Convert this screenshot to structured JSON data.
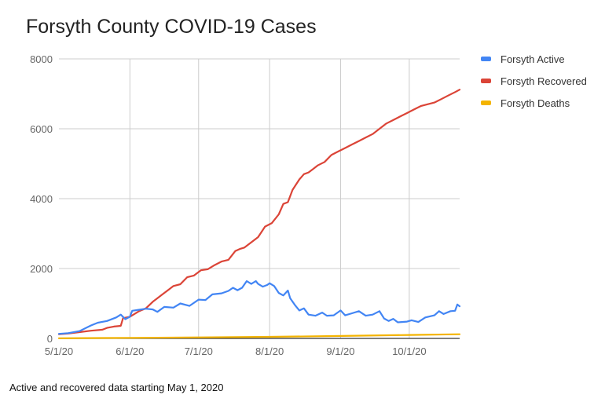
{
  "chart_data": {
    "type": "line",
    "title": "Forsyth County COVID-19 Cases",
    "xlabel": "",
    "ylabel": "",
    "x_ticks": [
      "5/1/20",
      "6/1/20",
      "7/1/20",
      "8/1/20",
      "9/1/20",
      "10/1/20"
    ],
    "x_range": [
      "5/1/20",
      "10/23/20"
    ],
    "y_ticks": [
      "0",
      "2000",
      "4000",
      "6000",
      "8000"
    ],
    "ylim": [
      0,
      8000
    ],
    "grid": true,
    "legend_position": "right",
    "annotation": "Active and recovered data starting May 1, 2020",
    "series": [
      {
        "name": "Forsyth Active",
        "color": "#4285f4",
        "points": [
          [
            "5/1/20",
            130
          ],
          [
            "5/5/20",
            150
          ],
          [
            "5/10/20",
            210
          ],
          [
            "5/15/20",
            370
          ],
          [
            "5/18/20",
            450
          ],
          [
            "5/22/20",
            500
          ],
          [
            "5/26/20",
            600
          ],
          [
            "5/28/20",
            680
          ],
          [
            "5/30/20",
            550
          ],
          [
            "6/1/20",
            620
          ],
          [
            "6/2/20",
            790
          ],
          [
            "6/5/20",
            820
          ],
          [
            "6/8/20",
            850
          ],
          [
            "6/11/20",
            830
          ],
          [
            "6/13/20",
            760
          ],
          [
            "6/16/20",
            900
          ],
          [
            "6/20/20",
            880
          ],
          [
            "6/23/20",
            1000
          ],
          [
            "6/27/20",
            930
          ],
          [
            "7/1/20",
            1110
          ],
          [
            "7/4/20",
            1100
          ],
          [
            "7/7/20",
            1260
          ],
          [
            "7/11/20",
            1290
          ],
          [
            "7/14/20",
            1360
          ],
          [
            "7/16/20",
            1450
          ],
          [
            "7/18/20",
            1380
          ],
          [
            "7/20/20",
            1450
          ],
          [
            "7/22/20",
            1640
          ],
          [
            "7/24/20",
            1560
          ],
          [
            "7/26/20",
            1640
          ],
          [
            "7/27/20",
            1560
          ],
          [
            "7/29/20",
            1480
          ],
          [
            "7/31/20",
            1530
          ],
          [
            "8/1/20",
            1580
          ],
          [
            "8/3/20",
            1500
          ],
          [
            "8/5/20",
            1300
          ],
          [
            "8/7/20",
            1230
          ],
          [
            "8/9/20",
            1370
          ],
          [
            "8/10/20",
            1150
          ],
          [
            "8/12/20",
            960
          ],
          [
            "8/14/20",
            800
          ],
          [
            "8/16/20",
            860
          ],
          [
            "8/18/20",
            680
          ],
          [
            "8/21/20",
            650
          ],
          [
            "8/24/20",
            740
          ],
          [
            "8/26/20",
            650
          ],
          [
            "8/29/20",
            660
          ],
          [
            "9/1/20",
            800
          ],
          [
            "9/3/20",
            660
          ],
          [
            "9/6/20",
            720
          ],
          [
            "9/9/20",
            780
          ],
          [
            "9/12/20",
            650
          ],
          [
            "9/15/20",
            680
          ],
          [
            "9/18/20",
            780
          ],
          [
            "9/20/20",
            570
          ],
          [
            "9/22/20",
            500
          ],
          [
            "9/24/20",
            560
          ],
          [
            "9/26/20",
            460
          ],
          [
            "9/30/20",
            480
          ],
          [
            "10/2/20",
            520
          ],
          [
            "10/5/20",
            470
          ],
          [
            "10/8/20",
            600
          ],
          [
            "10/12/20",
            660
          ],
          [
            "10/14/20",
            780
          ],
          [
            "10/16/20",
            700
          ],
          [
            "10/19/20",
            780
          ],
          [
            "10/21/20",
            790
          ],
          [
            "10/22/20",
            970
          ],
          [
            "10/23/20",
            920
          ]
        ]
      },
      {
        "name": "Forsyth Recovered",
        "color": "#db4437",
        "points": [
          [
            "5/1/20",
            120
          ],
          [
            "5/5/20",
            140
          ],
          [
            "5/10/20",
            180
          ],
          [
            "5/15/20",
            220
          ],
          [
            "5/20/20",
            250
          ],
          [
            "5/22/20",
            300
          ],
          [
            "5/25/20",
            340
          ],
          [
            "5/28/20",
            360
          ],
          [
            "5/29/20",
            580
          ],
          [
            "6/1/20",
            620
          ],
          [
            "6/5/20",
            780
          ],
          [
            "6/8/20",
            860
          ],
          [
            "6/11/20",
            1050
          ],
          [
            "6/15/20",
            1250
          ],
          [
            "6/18/20",
            1400
          ],
          [
            "6/20/20",
            1500
          ],
          [
            "6/23/20",
            1550
          ],
          [
            "6/26/20",
            1750
          ],
          [
            "6/29/20",
            1800
          ],
          [
            "7/2/20",
            1950
          ],
          [
            "7/5/20",
            1980
          ],
          [
            "7/8/20",
            2100
          ],
          [
            "7/11/20",
            2200
          ],
          [
            "7/14/20",
            2250
          ],
          [
            "7/17/20",
            2500
          ],
          [
            "7/19/20",
            2560
          ],
          [
            "7/21/20",
            2600
          ],
          [
            "7/24/20",
            2750
          ],
          [
            "7/27/20",
            2900
          ],
          [
            "7/30/20",
            3200
          ],
          [
            "8/2/20",
            3300
          ],
          [
            "8/5/20",
            3550
          ],
          [
            "8/7/20",
            3850
          ],
          [
            "8/9/20",
            3900
          ],
          [
            "8/11/20",
            4250
          ],
          [
            "8/14/20",
            4550
          ],
          [
            "8/16/20",
            4700
          ],
          [
            "8/18/20",
            4750
          ],
          [
            "8/20/20",
            4850
          ],
          [
            "8/22/20",
            4950
          ],
          [
            "8/25/20",
            5050
          ],
          [
            "8/28/20",
            5250
          ],
          [
            "8/31/20",
            5350
          ],
          [
            "9/3/20",
            5450
          ],
          [
            "9/6/20",
            5550
          ],
          [
            "9/9/20",
            5650
          ],
          [
            "9/12/20",
            5750
          ],
          [
            "9/15/20",
            5850
          ],
          [
            "9/18/20",
            6000
          ],
          [
            "9/21/20",
            6150
          ],
          [
            "9/24/20",
            6250
          ],
          [
            "9/27/20",
            6350
          ],
          [
            "9/30/20",
            6450
          ],
          [
            "10/3/20",
            6550
          ],
          [
            "10/6/20",
            6650
          ],
          [
            "10/9/20",
            6700
          ],
          [
            "10/12/20",
            6750
          ],
          [
            "10/15/20",
            6850
          ],
          [
            "10/18/20",
            6950
          ],
          [
            "10/21/20",
            7050
          ],
          [
            "10/23/20",
            7120
          ]
        ]
      },
      {
        "name": "Forsyth Deaths",
        "color": "#f4b400",
        "points": [
          [
            "5/1/20",
            5
          ],
          [
            "6/1/20",
            15
          ],
          [
            "7/1/20",
            30
          ],
          [
            "8/1/20",
            45
          ],
          [
            "9/1/20",
            70
          ],
          [
            "10/1/20",
            100
          ],
          [
            "10/23/20",
            120
          ]
        ]
      }
    ]
  }
}
